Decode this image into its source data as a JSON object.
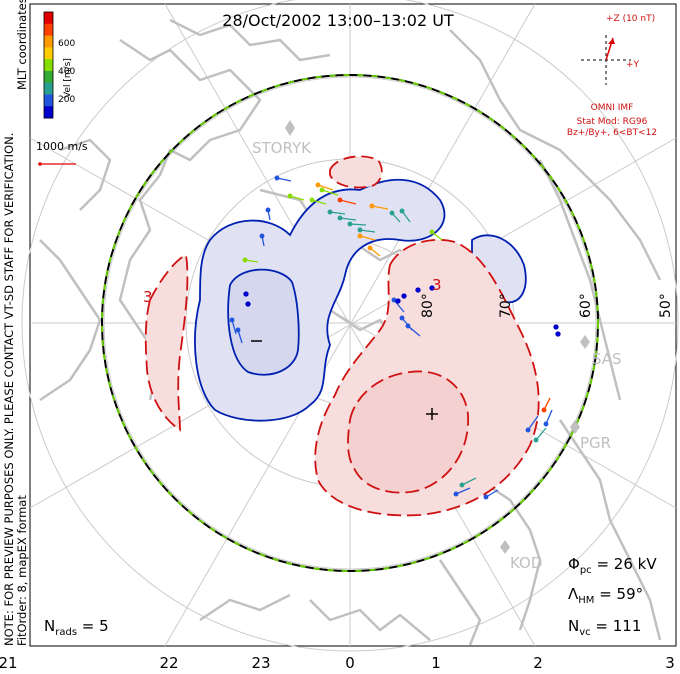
{
  "title": "28/Oct/2002 13:00–13:02 UT",
  "side_note_1": "NOTE: FOR PREVIEW PURPOSES ONLY. PLEASE CONTACT VT-SD STAFF FOR VERIFICATION.",
  "side_note_2": "FitOrder: 8, mapEX format",
  "coord_label": "MLT coordinates",
  "colorbar": {
    "label": "Vel [m/s]",
    "ticks": [
      "600",
      "400",
      "200"
    ],
    "colors": [
      "#e00000",
      "#ff4000",
      "#ff9900",
      "#ffcc00",
      "#88dd00",
      "#33aa33",
      "#2aa090",
      "#2255dd",
      "#0000cc"
    ]
  },
  "ref_vector": "1000 m/s",
  "imf": {
    "bz_label": "+Z (10 nT)",
    "by_label": "+Y",
    "source": "OMNI IMF",
    "model": "Stat Mod: RG96",
    "conditions": "Bz+/By+, 6<BT<12"
  },
  "stations": [
    {
      "name": "STORYK"
    },
    {
      "name": "SAS"
    },
    {
      "name": "PGR"
    },
    {
      "name": "KOD"
    }
  ],
  "lat_labels": [
    "80°",
    "70°",
    "60°",
    "50°"
  ],
  "contour_labels": [
    "3",
    "3"
  ],
  "mlt_ticks": [
    "21",
    "22",
    "23",
    "0",
    "1",
    "2",
    "3"
  ],
  "stats": {
    "phi_symbol": "Φ",
    "phi_sub": "pc",
    "phi_value": " = 26 kV",
    "lambda_symbol": "Λ",
    "lambda_sub": "HM",
    "lambda_value": " = 59°",
    "nvc_symbol": "N",
    "nvc_sub": "vc",
    "nvc_value": " = 111",
    "nrads_symbol": "N",
    "nrads_sub": "rads",
    "nrads_value": " = 5"
  },
  "colors": {
    "negative_cell": "#0020b0",
    "negative_fill": "#e0e2f4",
    "positive_cell": "#d01010",
    "positive_fill": "#f8dddd",
    "boundary_green": "#66cc00",
    "coast": "#c0c0c0",
    "grid": "#c8c8c8"
  }
}
